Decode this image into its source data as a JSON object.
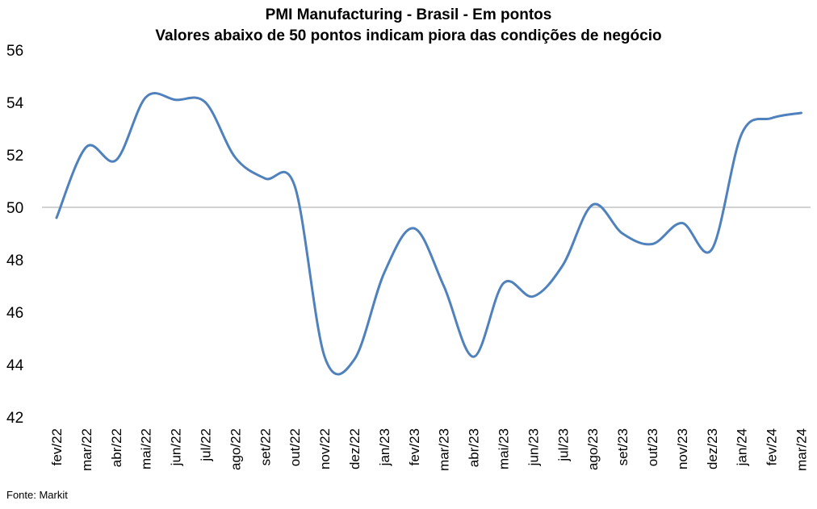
{
  "chart_data": {
    "type": "line",
    "title_line1": "PMI Manufacturing - Brasil - Em pontos",
    "title_line2": "Valores abaixo de 50 pontos indicam piora das condições de negócio",
    "xlabel": "",
    "ylabel": "",
    "source": "Fonte: Markit",
    "ylim": [
      42,
      56
    ],
    "yticks": [
      42,
      44,
      46,
      48,
      50,
      52,
      54,
      56
    ],
    "reference_line": 50,
    "grid": false,
    "legend": "none",
    "line_color": "#4f81bd",
    "reference_color": "#a6a6a6",
    "categories": [
      "fev/22",
      "mar/22",
      "abr/22",
      "mai/22",
      "jun/22",
      "jul/22",
      "ago/22",
      "set/22",
      "out/22",
      "nov/22",
      "dez/22",
      "jan/23",
      "fev/23",
      "mar/23",
      "abr/23",
      "mai/23",
      "jun/23",
      "jul/23",
      "ago/23",
      "set/23",
      "out/23",
      "nov/23",
      "dez/23",
      "jan/24",
      "fev/24",
      "mar/24"
    ],
    "series": [
      {
        "values": [
          49.6,
          52.3,
          51.8,
          54.2,
          54.1,
          54.0,
          51.9,
          51.1,
          50.8,
          44.3,
          44.2,
          47.5,
          49.2,
          47.0,
          44.3,
          47.1,
          46.6,
          47.8,
          50.1,
          49.0,
          48.6,
          49.4,
          48.4,
          52.8,
          53.4,
          53.6
        ]
      }
    ]
  }
}
